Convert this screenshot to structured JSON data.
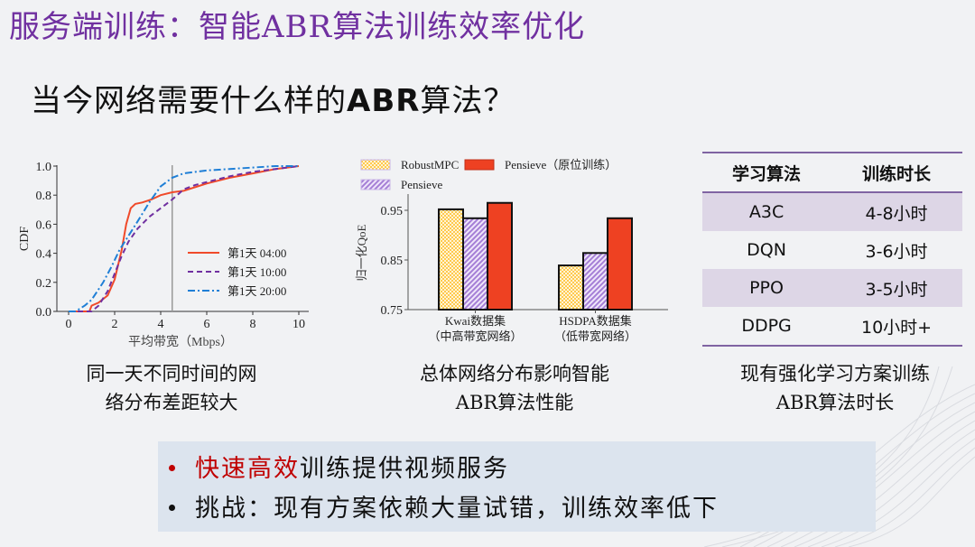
{
  "slide": {
    "title": "服务端训练：智能ABR算法训练效率优化",
    "subtitle_pre": "当今网络需要什么样的",
    "subtitle_abr": "ABR",
    "subtitle_post": "算法？",
    "colors": {
      "title": "#7030a0",
      "background": "#f1f2f4",
      "highlight": "#c00000",
      "box": "#dce4ee",
      "table_accent": "#8064a2",
      "table_shade": "#ddd6e6"
    }
  },
  "captions": {
    "left": [
      "同一天不同时间的网",
      "络分布差距较大"
    ],
    "middle": [
      "总体网络分布影响智能",
      "ABR算法性能"
    ],
    "right": [
      "现有强化学习方案训练",
      "ABR算法时长"
    ]
  },
  "table": {
    "headers": [
      "学习算法",
      "训练时长"
    ],
    "rows": [
      [
        "A3C",
        "4-8小时"
      ],
      [
        "DQN",
        "3-6小时"
      ],
      [
        "PPO",
        "3-5小时"
      ],
      [
        "DDPG",
        "10小时+"
      ]
    ]
  },
  "bullets": {
    "b1_highlight": "快速高效",
    "b1_rest": "训练提供视频服务",
    "b2": "挑战：现有方案依赖大量试错，训练效率低下"
  },
  "chart_data": [
    {
      "type": "line",
      "title": "",
      "xlabel": "平均带宽（Mbps）",
      "ylabel": "CDF",
      "xlim": [
        0,
        10
      ],
      "ylim": [
        0,
        1.0
      ],
      "xticks": [
        "0",
        "2",
        "4",
        "6",
        "8",
        "10"
      ],
      "yticks": [
        "0.0",
        "0.2",
        "0.4",
        "0.6",
        "0.8",
        "1.0"
      ],
      "vline_x": 4.5,
      "legend_position": "lower right",
      "series": [
        {
          "name": "第1天 04:00",
          "color": "#f04a2a",
          "style": "solid",
          "x": [
            0,
            0.9,
            1.0,
            1.3,
            1.7,
            2.0,
            2.3,
            2.5,
            2.7,
            2.9,
            3.2,
            3.6,
            4.0,
            4.5,
            5.0,
            5.6,
            6.0,
            7.0,
            8.0,
            9.0,
            10.0
          ],
          "y": [
            0,
            0,
            0.04,
            0.06,
            0.11,
            0.22,
            0.42,
            0.6,
            0.71,
            0.74,
            0.75,
            0.77,
            0.8,
            0.82,
            0.83,
            0.86,
            0.88,
            0.92,
            0.95,
            0.98,
            1.0
          ]
        },
        {
          "name": "第1天 10:00",
          "color": "#7030a0",
          "style": "dashed",
          "x": [
            0,
            1.0,
            1.3,
            1.7,
            2.0,
            2.3,
            2.6,
            3.0,
            3.5,
            4.0,
            4.5,
            5.0,
            5.5,
            6.0,
            7.0,
            8.0,
            9.0,
            10.0
          ],
          "y": [
            0,
            0,
            0.04,
            0.14,
            0.26,
            0.38,
            0.48,
            0.57,
            0.65,
            0.71,
            0.77,
            0.84,
            0.87,
            0.89,
            0.93,
            0.96,
            0.98,
            1.0
          ]
        },
        {
          "name": "第1天 20:00",
          "color": "#1f7fd6",
          "style": "dashdot",
          "x": [
            0,
            0.3,
            0.7,
            1.0,
            1.5,
            1.9,
            2.2,
            2.6,
            3.0,
            3.5,
            4.0,
            4.5,
            5.0,
            6.0,
            7.0,
            8.0,
            9.0,
            10.0
          ],
          "y": [
            0,
            0,
            0.04,
            0.08,
            0.2,
            0.32,
            0.42,
            0.52,
            0.62,
            0.75,
            0.86,
            0.92,
            0.95,
            0.97,
            0.98,
            0.99,
            1.0,
            1.0
          ]
        }
      ]
    },
    {
      "type": "bar",
      "title": "",
      "xlabel": "",
      "ylabel": "归一化QoE",
      "ylim": [
        0.75,
        0.98
      ],
      "yticks": [
        "0.75",
        "0.85",
        "0.95"
      ],
      "categories": [
        "Kwai数据集\n（中高带宽网络）",
        "HSDPA数据集\n（低带宽网络）"
      ],
      "category_lines": [
        [
          "Kwai数据集",
          "（中高带宽网络）"
        ],
        [
          "HSDPA数据集",
          "（低带宽网络）"
        ]
      ],
      "legend_position": "top",
      "series": [
        {
          "name": "RobustMPC",
          "color": "#ffc94d",
          "pattern": "dots",
          "values": [
            0.952,
            0.839
          ]
        },
        {
          "name": "Pensieve",
          "color": "#b89ad9",
          "pattern": "hatch",
          "values": [
            0.934,
            0.864
          ]
        },
        {
          "name": "Pensieve（原位训练）",
          "color": "#ee4122",
          "pattern": "solid",
          "values": [
            0.965,
            0.934
          ]
        }
      ]
    }
  ]
}
